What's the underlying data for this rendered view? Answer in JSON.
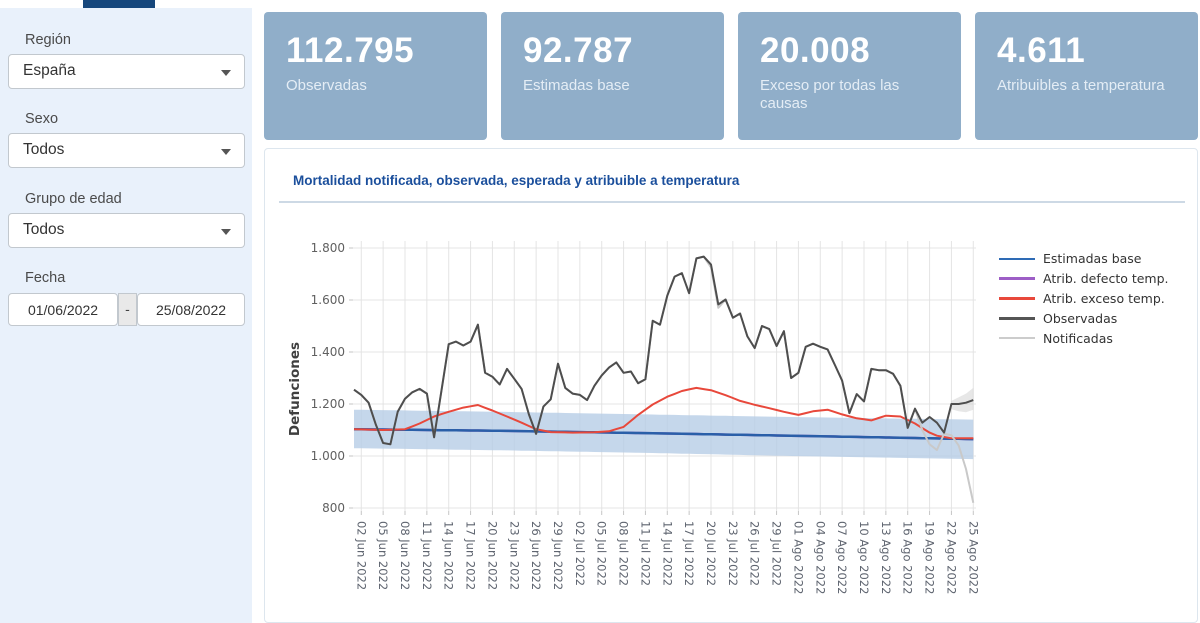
{
  "tab": {
    "name": "active-tab"
  },
  "sidebar": {
    "filters": [
      {
        "label": "Región",
        "value": "España"
      },
      {
        "label": "Sexo",
        "value": "Todos"
      },
      {
        "label": "Grupo de edad",
        "value": "Todos"
      }
    ],
    "date_filter": {
      "label": "Fecha",
      "from": "01/06/2022",
      "separator": "-",
      "to": "25/08/2022"
    }
  },
  "cards": [
    {
      "value": "112.795",
      "label": "Observadas"
    },
    {
      "value": "92.787",
      "label": "Estimadas base"
    },
    {
      "value": "20.008",
      "label": "Exceso por todas las causas"
    },
    {
      "value": "4.611",
      "label": "Atribuibles a temperatura"
    }
  ],
  "chart": {
    "title": "Mortalidad notificada, observada, esperada y atribuible a temperatura"
  },
  "chart_data": {
    "type": "line",
    "title": "Mortalidad notificada, observada, esperada y atribuible a temperatura",
    "xlabel": "",
    "ylabel": "Defunciones",
    "ylim": [
      800,
      1800
    ],
    "grid": true,
    "legend_position": "right",
    "x_start": "01 Jun 2022",
    "x_end": "25 Ago 2022",
    "x_days": 86,
    "x_tick_labels": [
      "02 Jun 2022",
      "05 Jun 2022",
      "08 Jun 2022",
      "11 Jun 2022",
      "14 Jun 2022",
      "17 Jun 2022",
      "20 Jun 2022",
      "23 Jun 2022",
      "26 Jun 2022",
      "29 Jun 2022",
      "02 Jul 2022",
      "05 Jul 2022",
      "08 Jul 2022",
      "11 Jul 2022",
      "14 Jul 2022",
      "17 Jul 2022",
      "20 Jul 2022",
      "23 Jul 2022",
      "26 Jul 2022",
      "29 Jul 2022",
      "01 Ago 2022",
      "04 Ago 2022",
      "07 Ago 2022",
      "10 Ago 2022",
      "13 Ago 2022",
      "16 Ago 2022",
      "19 Ago 2022",
      "22 Ago 2022",
      "25 Ago 2022"
    ],
    "y_ticks": [
      {
        "v": 800,
        "label": "800"
      },
      {
        "v": 1000,
        "label": "1.000"
      },
      {
        "v": 1200,
        "label": "1.200"
      },
      {
        "v": 1400,
        "label": "1.400"
      },
      {
        "v": 1600,
        "label": "1.600"
      },
      {
        "v": 1800,
        "label": "1.800"
      }
    ],
    "band": {
      "name": "intervalo-estimadas",
      "color": "#b7cde6",
      "opacity": 0.8,
      "upper": [
        [
          0,
          1178
        ],
        [
          20,
          1170
        ],
        [
          40,
          1160
        ],
        [
          60,
          1150
        ],
        [
          85,
          1140
        ]
      ],
      "lower": [
        [
          0,
          1030
        ],
        [
          20,
          1022
        ],
        [
          40,
          1012
        ],
        [
          60,
          1000
        ],
        [
          85,
          988
        ]
      ]
    },
    "fan": {
      "name": "intervalo-observadas-final",
      "color": "#c9c9c9",
      "opacity": 0.45,
      "upper": [
        [
          81,
          1092
        ],
        [
          82,
          1212
        ],
        [
          83,
          1226
        ],
        [
          84,
          1240
        ],
        [
          85,
          1262
        ]
      ],
      "lower": [
        [
          81,
          1086
        ],
        [
          82,
          1180
        ],
        [
          83,
          1172
        ],
        [
          84,
          1168
        ],
        [
          85,
          1178
        ]
      ]
    },
    "series": [
      {
        "name": "Estimadas base",
        "color": "#2a5fa8",
        "width": 2.5,
        "ctrl": [
          [
            0,
            1103
          ],
          [
            20,
            1097
          ],
          [
            40,
            1088
          ],
          [
            60,
            1078
          ],
          [
            85,
            1065
          ]
        ]
      },
      {
        "name": "Atrib. defecto temp.",
        "color": "#9d5ec6",
        "width": 2.5,
        "ctrl": [
          [
            0,
            1103
          ],
          [
            20,
            1097
          ],
          [
            40,
            1088
          ],
          [
            60,
            1078
          ],
          [
            85,
            1065
          ]
        ]
      },
      {
        "name": "Atrib. exceso temp.",
        "color": "#e8483b",
        "width": 2,
        "ctrl": [
          [
            0,
            1103
          ],
          [
            4,
            1100
          ],
          [
            7,
            1103
          ],
          [
            9,
            1125
          ],
          [
            11,
            1152
          ],
          [
            13,
            1170
          ],
          [
            15,
            1186
          ],
          [
            17,
            1196
          ],
          [
            19,
            1175
          ],
          [
            21,
            1152
          ],
          [
            23,
            1128
          ],
          [
            25,
            1103
          ],
          [
            27,
            1092
          ],
          [
            30,
            1090
          ],
          [
            33,
            1091
          ],
          [
            35,
            1095
          ],
          [
            37,
            1112
          ],
          [
            39,
            1158
          ],
          [
            41,
            1198
          ],
          [
            43,
            1228
          ],
          [
            45,
            1250
          ],
          [
            47,
            1262
          ],
          [
            49,
            1253
          ],
          [
            51,
            1234
          ],
          [
            53,
            1212
          ],
          [
            55,
            1197
          ],
          [
            57,
            1184
          ],
          [
            59,
            1170
          ],
          [
            61,
            1158
          ],
          [
            63,
            1172
          ],
          [
            65,
            1178
          ],
          [
            67,
            1160
          ],
          [
            69,
            1145
          ],
          [
            71,
            1137
          ],
          [
            73,
            1155
          ],
          [
            75,
            1152
          ],
          [
            77,
            1125
          ],
          [
            79,
            1090
          ],
          [
            80,
            1078
          ],
          [
            82,
            1068
          ],
          [
            85,
            1068
          ]
        ]
      },
      {
        "name": "Observadas",
        "color": "#4e4e4e",
        "width": 2,
        "values": [
          1255,
          1235,
          1205,
          1120,
          1050,
          1045,
          1170,
          1220,
          1245,
          1258,
          1240,
          1072,
          1250,
          1430,
          1440,
          1425,
          1440,
          1505,
          1320,
          1305,
          1275,
          1335,
          1297,
          1258,
          1160,
          1085,
          1190,
          1218,
          1355,
          1262,
          1240,
          1235,
          1215,
          1270,
          1310,
          1340,
          1360,
          1320,
          1325,
          1280,
          1295,
          1520,
          1505,
          1617,
          1690,
          1703,
          1626,
          1760,
          1767,
          1736,
          1583,
          1602,
          1532,
          1548,
          1460,
          1415,
          1500,
          1488,
          1423,
          1480,
          1300,
          1320,
          1420,
          1432,
          1420,
          1410,
          1350,
          1290,
          1165,
          1238,
          1210,
          1335,
          1330,
          1330,
          1316,
          1270,
          1108,
          1182,
          1128,
          1150,
          1128,
          1090,
          1200,
          1200,
          1205,
          1215
        ]
      },
      {
        "name": "Notificadas",
        "color": "#c9c9c9",
        "width": 2,
        "values": [
          1255,
          1235,
          1205,
          1120,
          1050,
          1045,
          1170,
          1220,
          1245,
          1258,
          1240,
          1072,
          1250,
          1430,
          1440,
          1425,
          1440,
          1505,
          1320,
          1305,
          1275,
          1335,
          1297,
          1258,
          1160,
          1085,
          1190,
          1218,
          1355,
          1262,
          1240,
          1235,
          1215,
          1270,
          1310,
          1340,
          1360,
          1320,
          1325,
          1280,
          1295,
          1520,
          1505,
          1617,
          1690,
          1703,
          1626,
          1760,
          1767,
          1725,
          1570,
          1602,
          1532,
          1548,
          1460,
          1415,
          1500,
          1488,
          1423,
          1480,
          1300,
          1320,
          1420,
          1432,
          1420,
          1410,
          1350,
          1290,
          1165,
          1238,
          1210,
          1335,
          1330,
          1330,
          1316,
          1270,
          1108,
          1182,
          1100,
          1045,
          1023,
          1086,
          1080,
          1040,
          950,
          820
        ]
      }
    ],
    "legend": [
      {
        "label": "Estimadas base",
        "color": "#2e6bb5"
      },
      {
        "label": "Atrib. defecto temp.",
        "color": "#9d5ec6"
      },
      {
        "label": "Atrib. exceso temp.",
        "color": "#e8483b"
      },
      {
        "label": "Observadas",
        "color": "#555555"
      },
      {
        "label": "Notificadas",
        "color": "#cccccc"
      }
    ]
  }
}
